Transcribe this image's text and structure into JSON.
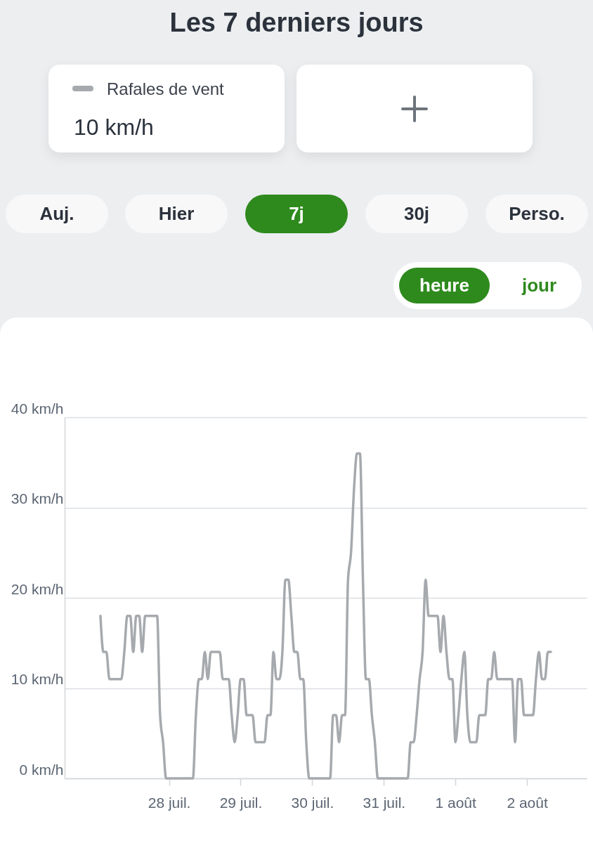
{
  "chart_data": {
    "type": "line",
    "title": "Les 7 derniers jours",
    "annotations": [
      "10 km/h",
      "Auj.",
      "Hier",
      "7j",
      "30j",
      "Perso.",
      "heure",
      "jour"
    ],
    "x": [
      "--07-27T01:00",
      "--07-27T02:00",
      "--07-27T03:00",
      "--07-27T04:00",
      "--07-27T08:00",
      "--07-27T09:00",
      "--07-27T10:00",
      "--07-27T11:00",
      "--07-27T12:00",
      "--07-27T13:00",
      "--07-27T14:00",
      "--07-27T15:00",
      "--07-27T16:00",
      "--07-27T20:00",
      "--07-27T21:00",
      "--07-27T22:00",
      "--07-27T23:00",
      "--07-28T08:00",
      "--07-28T09:00",
      "--07-28T10:00",
      "--07-28T11:00",
      "--07-28T12:00",
      "--07-28T13:00",
      "--07-28T14:00",
      "--07-28T17:00",
      "--07-28T18:00",
      "--07-28T20:00",
      "--07-28T21:00",
      "--07-28T22:00",
      "--07-28T23:00",
      "--07-29T00:00",
      "--07-29T01:00",
      "--07-29T02:00",
      "--07-29T04:00",
      "--07-29T05:00",
      "--07-29T08:00",
      "--07-29T09:00",
      "--07-29T10:00",
      "--07-29T11:00",
      "--07-29T12:00",
      "--07-29T13:00",
      "--07-29T14:00",
      "--07-29T15:00",
      "--07-29T16:00",
      "--07-29T17:00",
      "--07-29T18:00",
      "--07-29T19:00",
      "--07-29T20:00",
      "--07-29T21:00",
      "--07-29T22:00",
      "--07-29T23:00",
      "--07-30T06:00",
      "--07-30T07:00",
      "--07-30T08:00",
      "--07-30T09:00",
      "--07-30T10:00",
      "--07-30T11:00",
      "--07-30T12:00",
      "--07-30T13:00",
      "--07-30T14:00",
      "--07-30T15:00",
      "--07-30T16:00",
      "--07-30T17:00",
      "--07-30T18:00",
      "--07-30T19:00",
      "--07-30T20:00",
      "--07-30T21:00",
      "--07-30T22:00",
      "--07-31T08:00",
      "--07-31T09:00",
      "--07-31T10:00",
      "--07-31T11:00",
      "--07-31T12:00",
      "--07-31T13:00",
      "--07-31T14:00",
      "--07-31T15:00",
      "--07-31T18:00",
      "--07-31T19:00",
      "--07-31T20:00",
      "--07-31T21:00",
      "--07-31T22:00",
      "--07-31T23:00",
      "--08-01T00:00",
      "--08-01T01:00",
      "--08-01T02:00",
      "--08-01T03:00",
      "--08-01T04:00",
      "--08-01T05:00",
      "--08-01T07:00",
      "--08-01T08:00",
      "--08-01T10:00",
      "--08-01T11:00",
      "--08-01T12:00",
      "--08-01T13:00",
      "--08-01T14:00",
      "--08-01T19:00",
      "--08-01T20:00",
      "--08-01T21:00",
      "--08-01T22:00",
      "--08-01T23:00",
      "--08-02T02:00",
      "--08-02T03:00",
      "--08-02T04:00",
      "--08-02T05:00",
      "--08-02T06:00",
      "--08-02T07:00",
      "--08-02T08:00"
    ],
    "series": [
      {
        "name": "Rafales de vent",
        "color": "#a6aaae",
        "values": [
          18,
          14,
          14,
          11,
          11,
          14,
          18,
          18,
          14,
          18,
          18,
          14,
          18,
          18,
          7,
          4,
          0,
          0,
          7,
          11,
          11,
          14,
          11,
          14,
          14,
          11,
          11,
          7,
          4,
          7,
          11,
          11,
          7,
          7,
          4,
          4,
          7,
          7,
          14,
          11,
          11,
          14,
          22,
          22,
          18,
          14,
          14,
          11,
          11,
          4,
          0,
          0,
          7,
          7,
          4,
          7,
          7,
          22,
          25,
          32,
          36,
          36,
          22,
          11,
          11,
          7,
          4,
          0,
          0,
          4,
          4,
          7,
          11,
          14,
          22,
          18,
          18,
          14,
          18,
          14,
          11,
          11,
          4,
          7,
          11,
          14,
          7,
          4,
          4,
          7,
          7,
          11,
          11,
          14,
          11,
          11,
          4,
          11,
          11,
          7,
          7,
          11,
          14,
          11,
          11,
          14,
          14
        ]
      }
    ],
    "xlim": [
      "--07-26T13:00",
      "--08-02T20:00"
    ],
    "xticks": [
      {
        "value": "--07-28",
        "label": "28 juil."
      },
      {
        "value": "--07-29",
        "label": "29 juil."
      },
      {
        "value": "--07-30",
        "label": "30 juil."
      },
      {
        "value": "--07-31",
        "label": "31 juil."
      },
      {
        "value": "--08-01",
        "label": "1 août"
      },
      {
        "value": "--08-02",
        "label": "2 août"
      }
    ],
    "ylim": [
      0,
      40
    ],
    "yticks": [
      {
        "value": 0,
        "label": "0 km/h"
      },
      {
        "value": 10,
        "label": "10 km/h"
      },
      {
        "value": 20,
        "label": "20 km/h"
      },
      {
        "value": 30,
        "label": "30 km/h"
      },
      {
        "value": 40,
        "label": "40 km/h"
      }
    ],
    "grid": "y",
    "legend": "top left",
    "line_style": "solid"
  }
}
